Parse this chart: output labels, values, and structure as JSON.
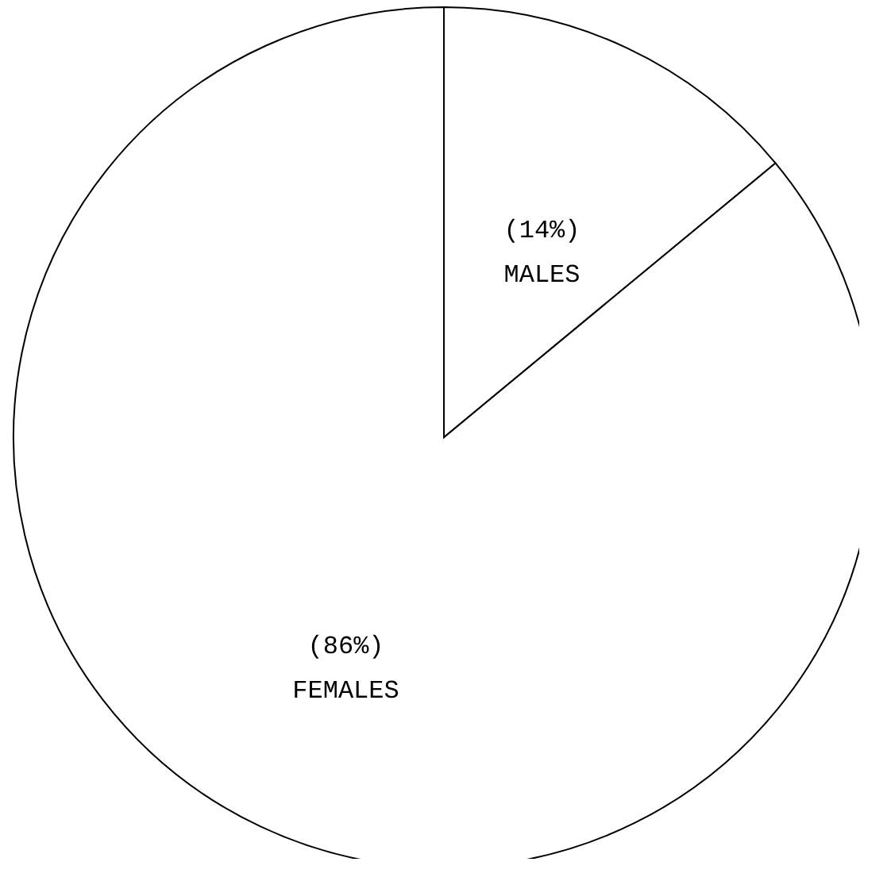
{
  "chart_data": {
    "type": "pie",
    "categories": [
      "MALES",
      "FEMALES"
    ],
    "values": [
      14,
      86
    ],
    "value_labels": [
      "(14%)",
      "(86%)"
    ],
    "colors": [
      "#ffffff",
      "#ffffff"
    ],
    "legend": false
  }
}
